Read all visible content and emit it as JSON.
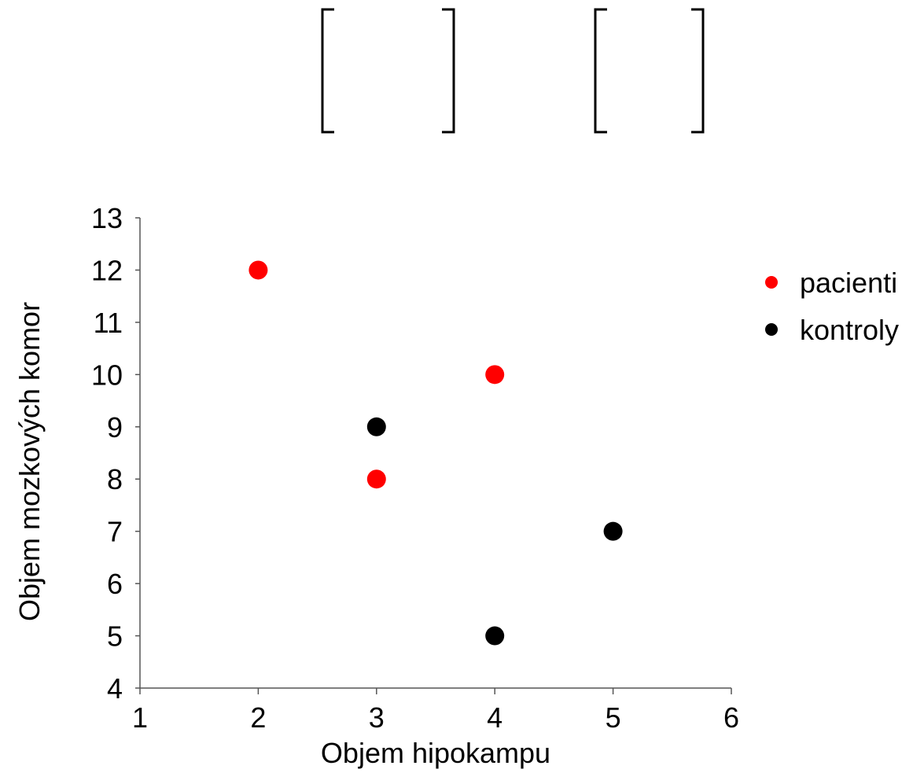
{
  "chart_data": {
    "type": "scatter",
    "xlabel": "Objem hipokampu",
    "ylabel": "Objem mozkových komor",
    "xlim": [
      1,
      6
    ],
    "ylim": [
      4,
      13
    ],
    "xticks": [
      1,
      2,
      3,
      4,
      5,
      6
    ],
    "yticks": [
      4,
      5,
      6,
      7,
      8,
      9,
      10,
      11,
      12,
      13
    ],
    "grid": false,
    "legend_position": "right",
    "series": [
      {
        "name": "pacienti",
        "color": "#ff0000",
        "points": [
          {
            "x": 2,
            "y": 12
          },
          {
            "x": 4,
            "y": 10
          },
          {
            "x": 3,
            "y": 8
          }
        ]
      },
      {
        "name": "kontroly",
        "color": "#000000",
        "points": [
          {
            "x": 3,
            "y": 9
          },
          {
            "x": 5,
            "y": 7
          },
          {
            "x": 4,
            "y": 5
          }
        ]
      }
    ]
  }
}
